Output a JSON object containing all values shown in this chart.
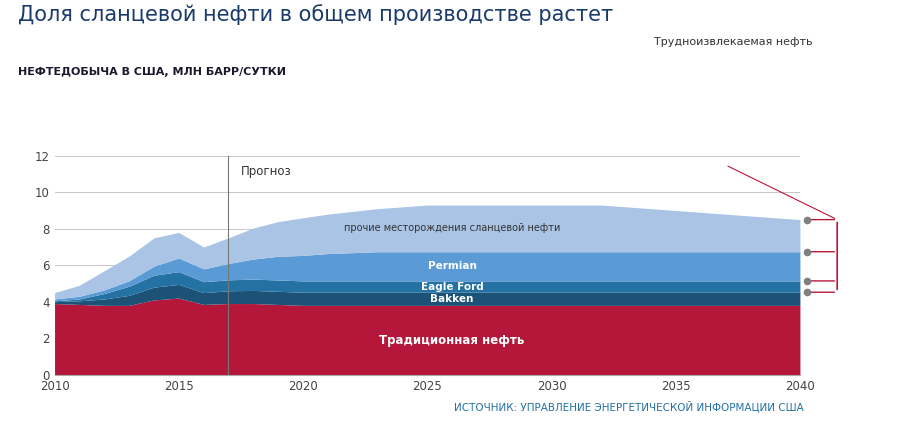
{
  "title": "Доля сланцевой нефти в общем производстве растет",
  "subtitle": "НЕФТЕДОБЫЧА В США, МЛН БАРР/СУТКИ",
  "source": "ИСТОЧНИК: УПРАВЛЕНИЕ ЭНЕРГЕТИЧЕСКОЙ ИНФОРМАЦИИ США",
  "forecast_label": "Прогноз",
  "forecast_year": 2017,
  "annotation_label": "Трудноизвлекаемая нефть",
  "years": [
    2010,
    2011,
    2012,
    2013,
    2014,
    2015,
    2016,
    2017,
    2018,
    2019,
    2020,
    2021,
    2022,
    2023,
    2024,
    2025,
    2026,
    2027,
    2028,
    2029,
    2030,
    2031,
    2032,
    2033,
    2034,
    2035,
    2036,
    2037,
    2038,
    2039,
    2040
  ],
  "traditional": [
    3.9,
    3.85,
    3.8,
    3.8,
    4.1,
    4.2,
    3.85,
    3.9,
    3.9,
    3.85,
    3.8,
    3.8,
    3.8,
    3.8,
    3.8,
    3.8,
    3.8,
    3.8,
    3.8,
    3.8,
    3.8,
    3.8,
    3.8,
    3.8,
    3.8,
    3.8,
    3.8,
    3.8,
    3.8,
    3.8,
    3.8
  ],
  "bakken": [
    0.1,
    0.2,
    0.35,
    0.55,
    0.7,
    0.75,
    0.65,
    0.7,
    0.72,
    0.72,
    0.72,
    0.72,
    0.72,
    0.72,
    0.72,
    0.72,
    0.72,
    0.72,
    0.72,
    0.72,
    0.72,
    0.72,
    0.72,
    0.72,
    0.72,
    0.72,
    0.72,
    0.72,
    0.72,
    0.72,
    0.72
  ],
  "eagleford": [
    0.05,
    0.1,
    0.3,
    0.5,
    0.65,
    0.7,
    0.6,
    0.6,
    0.62,
    0.62,
    0.62,
    0.62,
    0.62,
    0.62,
    0.62,
    0.62,
    0.62,
    0.62,
    0.62,
    0.62,
    0.62,
    0.62,
    0.62,
    0.62,
    0.62,
    0.62,
    0.62,
    0.62,
    0.62,
    0.62,
    0.62
  ],
  "permian": [
    0.1,
    0.15,
    0.2,
    0.3,
    0.5,
    0.75,
    0.7,
    0.9,
    1.1,
    1.3,
    1.4,
    1.5,
    1.55,
    1.6,
    1.6,
    1.6,
    1.6,
    1.6,
    1.6,
    1.6,
    1.6,
    1.6,
    1.6,
    1.6,
    1.6,
    1.6,
    1.6,
    1.6,
    1.6,
    1.6,
    1.6
  ],
  "other_shale": [
    0.35,
    0.6,
    1.05,
    1.35,
    1.55,
    1.4,
    1.2,
    1.4,
    1.7,
    1.9,
    2.06,
    2.16,
    2.26,
    2.36,
    2.46,
    2.56,
    2.56,
    2.56,
    2.56,
    2.56,
    2.56,
    2.56,
    2.56,
    2.46,
    2.36,
    2.26,
    2.16,
    2.06,
    1.96,
    1.86,
    1.76
  ],
  "color_traditional": "#b5173a",
  "color_bakken": "#1b5276",
  "color_eagleford": "#2471a3",
  "color_permian": "#5b9bd5",
  "color_other_shale": "#a9c4e4",
  "label_other_shale": "прочие месторождения сланцевой нефти",
  "ylim": [
    0,
    12
  ],
  "yticks": [
    0,
    2,
    4,
    6,
    8,
    10,
    12
  ],
  "xlim": [
    2010,
    2040
  ],
  "xticks": [
    2010,
    2015,
    2020,
    2025,
    2030,
    2035,
    2040
  ],
  "bg_color": "#ffffff",
  "grid_color": "#bbbbbb",
  "title_color": "#1a3a6b",
  "subtitle_color": "#1a1a2e",
  "source_color": "#2471a3",
  "dot_color": "#808080",
  "marker_line_color": "#b5173a",
  "annot_line_color": "#b5173a"
}
